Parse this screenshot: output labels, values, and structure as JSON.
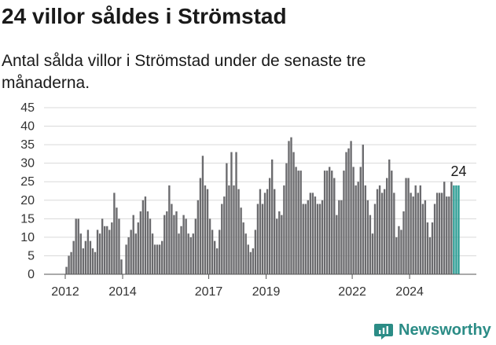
{
  "title": "24 villor såldes i Strömstad",
  "subtitle": "Antal sålda villor i Strömstad under de senaste tre månaderna.",
  "brand": {
    "name": "Newsworthy",
    "icon": "newsworthy-logo-icon"
  },
  "colors": {
    "bar": "#6b6b6e",
    "highlight": "#2b9c93",
    "brand": "#2b8c86"
  },
  "chart_data": {
    "type": "bar",
    "title": "24 villor såldes i Strömstad",
    "subtitle": "Antal sålda villor i Strömstad under de senaste tre månaderna.",
    "xlabel": "",
    "ylabel": "",
    "ylim": [
      0,
      45
    ],
    "yticks": [
      0,
      5,
      10,
      15,
      20,
      25,
      30,
      35,
      40,
      45
    ],
    "xticks": [
      "2012",
      "2014",
      "2017",
      "2019",
      "2022",
      "2024"
    ],
    "grid": "horizontal",
    "x_start": "2012-01",
    "x_end": "2024-12",
    "highlight_last": 3,
    "annotation": {
      "text": "24",
      "target": "last"
    },
    "values": [
      2,
      5,
      6,
      9,
      15,
      15,
      11,
      7,
      9,
      12,
      9,
      7,
      6,
      12,
      11,
      15,
      13,
      13,
      12,
      14,
      22,
      18,
      15,
      4,
      0,
      8,
      10,
      12,
      16,
      11,
      14,
      17,
      20,
      21,
      17,
      15,
      11,
      8,
      8,
      8,
      9,
      16,
      17,
      24,
      19,
      16,
      17,
      11,
      13,
      16,
      15,
      11,
      10,
      11,
      15,
      20,
      26,
      32,
      24,
      23,
      15,
      12,
      9,
      7,
      12,
      19,
      21,
      30,
      24,
      33,
      24,
      33,
      23,
      18,
      14,
      11,
      8,
      6,
      7,
      12,
      19,
      23,
      19,
      22,
      23,
      26,
      31,
      23,
      15,
      17,
      16,
      24,
      30,
      36,
      37,
      33,
      29,
      28,
      28,
      19,
      19,
      20,
      22,
      22,
      21,
      19,
      19,
      20,
      28,
      28,
      29,
      28,
      26,
      16,
      20,
      20,
      28,
      33,
      34,
      36,
      29,
      24,
      25,
      29,
      35,
      24,
      20,
      16,
      11,
      19,
      23,
      24,
      22,
      23,
      26,
      31,
      28,
      22,
      10,
      13,
      12,
      17,
      26,
      26,
      22,
      21,
      24,
      22,
      24,
      19,
      20,
      14,
      10,
      14,
      19,
      22,
      22,
      22,
      25,
      21,
      21,
      25,
      24,
      24,
      24
    ]
  }
}
